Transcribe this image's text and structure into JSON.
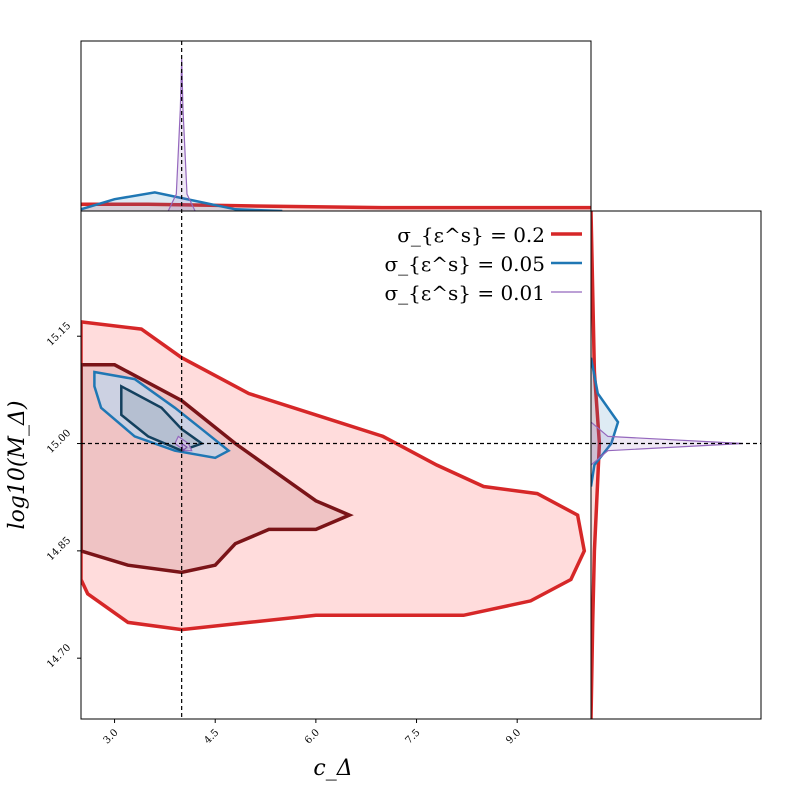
{
  "chart_data": {
    "type": "scatter",
    "subtype": "corner-plot",
    "xlabel": "c_Δ",
    "ylabel": "log10(M_Δ)",
    "xlim": [
      2.5,
      10.1
    ],
    "ylim": [
      14.615,
      15.325
    ],
    "xticks": [
      3.0,
      4.5,
      6.0,
      7.5,
      9.0
    ],
    "xtick_labels": [
      "3.0",
      "4.5",
      "6.0",
      "7.5",
      "9.0"
    ],
    "yticks": [
      14.7,
      14.85,
      15.0,
      15.15
    ],
    "ytick_labels": [
      "14.70",
      "14.85",
      "15.00",
      "15.15"
    ],
    "truth": {
      "x": 4.0,
      "y": 15.0
    },
    "legend_position": "top-right",
    "series": [
      {
        "name": "σ_{ε^s} = 0.2",
        "color": "#d62728",
        "fill": "#ffd6d6",
        "dark": "#7a1418",
        "contour_outer": [
          [
            2.5,
            15.17
          ],
          [
            3.4,
            15.16
          ],
          [
            4.0,
            15.12
          ],
          [
            5.0,
            15.07
          ],
          [
            6.0,
            15.04
          ],
          [
            7.0,
            15.01
          ],
          [
            7.8,
            14.97
          ],
          [
            8.5,
            14.94
          ],
          [
            9.3,
            14.93
          ],
          [
            9.9,
            14.9
          ],
          [
            10.0,
            14.85
          ],
          [
            9.8,
            14.81
          ],
          [
            9.2,
            14.78
          ],
          [
            8.2,
            14.76
          ],
          [
            7.0,
            14.76
          ],
          [
            6.0,
            14.76
          ],
          [
            5.0,
            14.75
          ],
          [
            4.0,
            14.74
          ],
          [
            3.2,
            14.75
          ],
          [
            2.6,
            14.79
          ],
          [
            2.5,
            14.81
          ]
        ],
        "contour_inner": [
          [
            2.5,
            15.11
          ],
          [
            3.0,
            15.11
          ],
          [
            4.0,
            15.06
          ],
          [
            4.8,
            15.0
          ],
          [
            5.4,
            14.96
          ],
          [
            6.0,
            14.92
          ],
          [
            6.5,
            14.9
          ],
          [
            6.0,
            14.88
          ],
          [
            5.3,
            14.88
          ],
          [
            4.8,
            14.86
          ],
          [
            4.5,
            14.83
          ],
          [
            4.0,
            14.82
          ],
          [
            3.2,
            14.83
          ],
          [
            2.5,
            14.85
          ]
        ],
        "marginal_x": [
          [
            2.5,
            0.04
          ],
          [
            3.5,
            0.04
          ],
          [
            5.0,
            0.03
          ],
          [
            7.0,
            0.02
          ],
          [
            9.0,
            0.02
          ],
          [
            10.1,
            0.02
          ]
        ],
        "marginal_y": [
          [
            15.325,
            0.0
          ],
          [
            15.1,
            0.02
          ],
          [
            15.0,
            0.05
          ],
          [
            14.9,
            0.03
          ],
          [
            14.85,
            0.02
          ],
          [
            14.75,
            0.01
          ],
          [
            14.615,
            0.0
          ]
        ]
      },
      {
        "name": "σ_{ε^s} = 0.05",
        "color": "#1f77b4",
        "fill": "#c6d3e8",
        "dark": "#13405e",
        "contour_outer": [
          [
            2.7,
            15.1
          ],
          [
            3.3,
            15.09
          ],
          [
            3.9,
            15.05
          ],
          [
            4.3,
            15.02
          ],
          [
            4.7,
            14.99
          ],
          [
            4.5,
            14.98
          ],
          [
            3.9,
            14.99
          ],
          [
            3.3,
            15.01
          ],
          [
            2.8,
            15.05
          ],
          [
            2.7,
            15.08
          ]
        ],
        "contour_inner": [
          [
            3.1,
            15.08
          ],
          [
            3.7,
            15.05
          ],
          [
            4.0,
            15.02
          ],
          [
            4.3,
            15.0
          ],
          [
            4.0,
            14.99
          ],
          [
            3.5,
            15.01
          ],
          [
            3.1,
            15.04
          ]
        ],
        "marginal_x": [
          [
            2.5,
            0.01
          ],
          [
            3.0,
            0.07
          ],
          [
            3.6,
            0.11
          ],
          [
            4.2,
            0.06
          ],
          [
            4.8,
            0.01
          ],
          [
            5.5,
            0.0
          ]
        ],
        "marginal_y": [
          [
            15.12,
            0.0
          ],
          [
            15.07,
            0.04
          ],
          [
            15.03,
            0.16
          ],
          [
            15.0,
            0.12
          ],
          [
            14.97,
            0.02
          ],
          [
            14.94,
            0.0
          ]
        ]
      },
      {
        "name": "σ_{ε^s} = 0.01",
        "color": "#9467bd",
        "fill": "#d5c8e3",
        "dark": "#7b4fa8",
        "contour_outer": [
          [
            3.95,
            15.01
          ],
          [
            4.1,
            15.0
          ],
          [
            4.15,
            14.99
          ],
          [
            4.05,
            14.99
          ],
          [
            3.9,
            15.0
          ]
        ],
        "contour_inner": [
          [
            4.0,
            15.0
          ],
          [
            4.08,
            14.995
          ],
          [
            4.02,
            14.99
          ]
        ],
        "marginal_x": [
          [
            3.8,
            0.0
          ],
          [
            3.92,
            0.1
          ],
          [
            3.98,
            0.6
          ],
          [
            4.0,
            0.9
          ],
          [
            4.02,
            0.6
          ],
          [
            4.08,
            0.1
          ],
          [
            4.2,
            0.0
          ]
        ],
        "marginal_y": [
          [
            15.03,
            0.0
          ],
          [
            15.01,
            0.1
          ],
          [
            15.0,
            0.9
          ],
          [
            14.99,
            0.1
          ],
          [
            14.97,
            0.0
          ]
        ]
      }
    ]
  }
}
